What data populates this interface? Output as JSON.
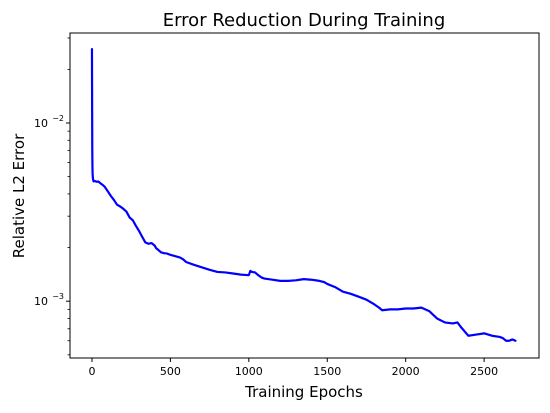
{
  "chart_data": {
    "type": "line",
    "title": "Error Reduction During Training",
    "xlabel": "Training Epochs",
    "ylabel": "Relative L2 Error",
    "xlim": [
      -140,
      2850
    ],
    "ylim": [
      0.00048,
      0.032
    ],
    "yscale": "log",
    "grid": false,
    "x_ticks": [
      0,
      500,
      1000,
      1500,
      2000,
      2500
    ],
    "x_tick_labels": [
      "0",
      "500",
      "1000",
      "1500",
      "2000",
      "2500"
    ],
    "y_ticks": [
      0.001,
      0.01
    ],
    "y_tick_labels": [
      {
        "base": "10",
        "exp": "−3"
      },
      {
        "base": "10",
        "exp": "−2"
      }
    ],
    "series": [
      {
        "color": "#0000ff",
        "x": [
          0,
          1,
          2,
          3,
          4,
          6,
          10,
          20,
          30,
          40,
          50,
          60,
          70,
          80,
          100,
          120,
          140,
          160,
          180,
          200,
          220,
          240,
          260,
          280,
          300,
          320,
          340,
          360,
          380,
          400,
          410,
          420,
          440,
          460,
          480,
          500,
          520,
          540,
          560,
          580,
          600,
          650,
          700,
          750,
          800,
          850,
          900,
          950,
          1000,
          1010,
          1020,
          1040,
          1060,
          1080,
          1100,
          1150,
          1200,
          1250,
          1300,
          1350,
          1400,
          1450,
          1480,
          1500,
          1550,
          1600,
          1650,
          1700,
          1750,
          1800,
          1830,
          1850,
          1900,
          1950,
          2000,
          2050,
          2100,
          2150,
          2200,
          2250,
          2300,
          2330,
          2350,
          2380,
          2400,
          2450,
          2500,
          2550,
          2600,
          2620,
          2640,
          2660,
          2680,
          2700
        ],
        "y": [
          0.026,
          0.013,
          0.0072,
          0.0058,
          0.0052,
          0.0049,
          0.0047,
          0.00472,
          0.00468,
          0.0047,
          0.00462,
          0.00455,
          0.00448,
          0.0044,
          0.00415,
          0.0039,
          0.0037,
          0.00348,
          0.0034,
          0.0033,
          0.00318,
          0.00295,
          0.00285,
          0.00265,
          0.00248,
          0.0023,
          0.00214,
          0.0021,
          0.00212,
          0.00205,
          0.00198,
          0.00195,
          0.00188,
          0.00186,
          0.00185,
          0.00182,
          0.0018,
          0.00178,
          0.00176,
          0.00172,
          0.00166,
          0.0016,
          0.00155,
          0.0015,
          0.00146,
          0.00145,
          0.00143,
          0.00141,
          0.0014,
          0.00148,
          0.00146,
          0.00145,
          0.0014,
          0.00136,
          0.00134,
          0.00132,
          0.0013,
          0.0013,
          0.00131,
          0.00133,
          0.00132,
          0.0013,
          0.00128,
          0.00125,
          0.0012,
          0.00113,
          0.0011,
          0.00106,
          0.00102,
          0.00096,
          0.00092,
          0.00089,
          0.0009,
          0.0009,
          0.00091,
          0.00091,
          0.00092,
          0.00088,
          0.0008,
          0.00076,
          0.00075,
          0.00076,
          0.00072,
          0.00067,
          0.00064,
          0.00065,
          0.00066,
          0.00064,
          0.00063,
          0.00062,
          0.0006,
          0.0006,
          0.00061,
          0.0006
        ]
      }
    ]
  }
}
